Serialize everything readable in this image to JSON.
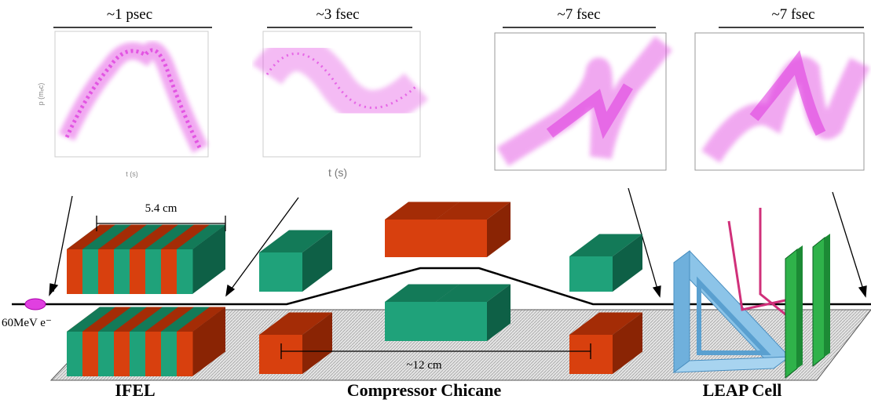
{
  "plots": [
    {
      "title": "~1 psec",
      "y_label": "p (mₑc)",
      "x_label": "t (s)"
    },
    {
      "title": "~3 fsec",
      "x_label": "t (s)"
    },
    {
      "title": "~7 fsec"
    },
    {
      "title": "~7 fsec"
    }
  ],
  "labels": {
    "ifel_length": "5.4 cm",
    "beam": "60MeV e⁻",
    "chicane_length": "~12 cm"
  },
  "sections": [
    "IFEL",
    "Compressor Chicane",
    "LEAP Cell"
  ]
}
